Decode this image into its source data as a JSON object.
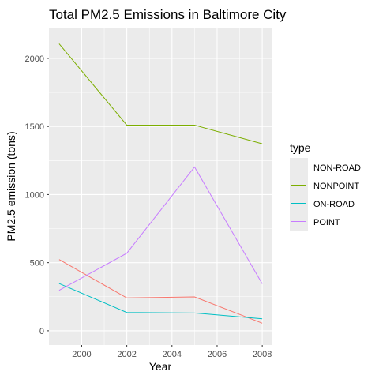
{
  "chart_data": {
    "type": "line",
    "title": "Total PM2.5 Emissions in Baltimore City",
    "xlabel": "Year",
    "ylabel": "PM2.5 emission (tons)",
    "legend_title": "type",
    "legend_position": "right",
    "grid": true,
    "xlim": [
      1998.55,
      2008.45
    ],
    "ylim": [
      -105,
      2220
    ],
    "x_ticks": [
      2000,
      2002,
      2004,
      2006,
      2008
    ],
    "y_ticks": [
      0,
      500,
      1000,
      1500,
      2000
    ],
    "x": [
      1999,
      2002,
      2005,
      2008
    ],
    "series": [
      {
        "name": "NON-ROAD",
        "color": "#F8766D",
        "values": [
          522.9,
          241.0,
          248.9,
          55.8
        ]
      },
      {
        "name": "NONPOINT",
        "color": "#7CAE00",
        "values": [
          2107.6,
          1509.5,
          1509.5,
          1373.2
        ]
      },
      {
        "name": "ON-ROAD",
        "color": "#00BFC4",
        "values": [
          346.8,
          134.3,
          130.4,
          88.3
        ]
      },
      {
        "name": "POINT",
        "color": "#C77CFF",
        "values": [
          296.8,
          569.3,
          1202.5,
          344.98
        ]
      }
    ]
  }
}
